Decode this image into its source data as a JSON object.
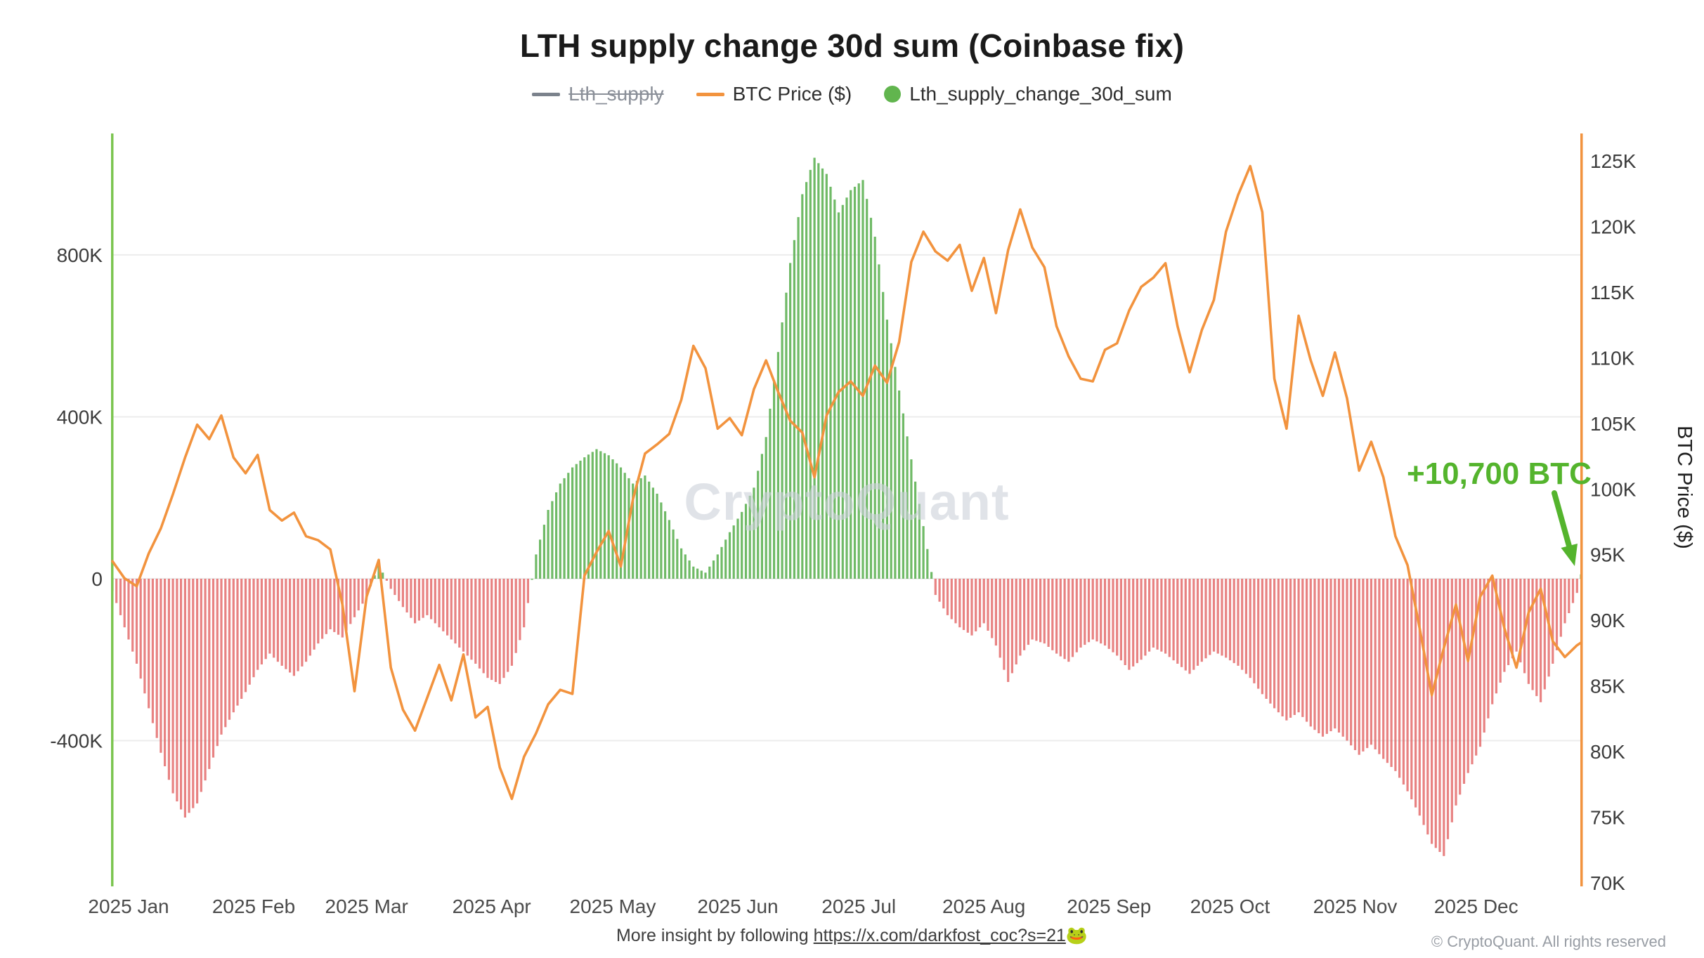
{
  "title": "LTH supply change 30d sum (Coinbase fix)",
  "watermark": "CryptoQuant",
  "legend": [
    {
      "label": "Lth_supply",
      "type": "line",
      "color": "#7b828c",
      "disabled": true
    },
    {
      "label": "BTC Price ($)",
      "type": "line",
      "color": "#f2933e",
      "disabled": false
    },
    {
      "label": "Lth_supply_change_30d_sum",
      "type": "dot",
      "color": "#61b54e",
      "disabled": false
    }
  ],
  "footer": {
    "insight_prefix": "More insight by following ",
    "insight_link": "https://x.com/darkfost_coc?s=21",
    "insight_emoji": "🐸",
    "copyright": "© CryptoQuant. All rights reserved"
  },
  "colors": {
    "bar_positive": "#5fb355",
    "bar_negative": "#e25f5f",
    "price_line": "#f2933e",
    "left_axis_line": "#7cc550",
    "right_axis_line": "#f2933e",
    "annotation_green": "#54b42d",
    "watermark": "#ccd1d9",
    "gridline": "#ececec"
  },
  "chart_data": {
    "type": "bar+line (dual axis)",
    "title": "LTH supply change 30d sum (Coinbase fix)",
    "x_unit": "day of year 2025 (daily bars, values sampled ~every 3 days)",
    "x_tick_labels": [
      "2025 Jan",
      "2025 Feb",
      "2025 Mar",
      "2025 Apr",
      "2025 May",
      "2025 Jun",
      "2025 Jul",
      "2025 Aug",
      "2025 Sep",
      "2025 Oct",
      "2025 Nov",
      "2025 Dec"
    ],
    "x_tick_days": [
      0,
      31,
      59,
      90,
      120,
      151,
      181,
      212,
      243,
      273,
      304,
      334
    ],
    "x_days": [
      0,
      3,
      6,
      9,
      12,
      15,
      18,
      21,
      24,
      27,
      30,
      33,
      36,
      39,
      42,
      45,
      48,
      51,
      54,
      57,
      60,
      63,
      66,
      69,
      72,
      75,
      78,
      81,
      84,
      87,
      90,
      93,
      96,
      99,
      102,
      105,
      108,
      111,
      114,
      117,
      120,
      123,
      126,
      129,
      132,
      135,
      138,
      141,
      144,
      147,
      150,
      153,
      156,
      159,
      162,
      165,
      168,
      171,
      174,
      177,
      180,
      183,
      186,
      189,
      192,
      195,
      198,
      201,
      204,
      207,
      210,
      213,
      216,
      219,
      222,
      225,
      228,
      231,
      234,
      237,
      240,
      243,
      246,
      249,
      252,
      255,
      258,
      261,
      264,
      267,
      270,
      273,
      276,
      279,
      282,
      285,
      288,
      291,
      294,
      297,
      300,
      303,
      306,
      309,
      312,
      315,
      318,
      321,
      324,
      327,
      330,
      333,
      336,
      339,
      342,
      345,
      348,
      351,
      354,
      357,
      360,
      363,
      364
    ],
    "left_axis": {
      "series": "Lth_supply_change_30d_sum",
      "unit": "BTC (K = thousands)",
      "ticks": [
        {
          "label": "800K",
          "value_k": 800
        },
        {
          "label": "400K",
          "value_k": 400
        },
        {
          "label": "0",
          "value_k": 0
        },
        {
          "label": "-400K",
          "value_k": -400
        }
      ],
      "range_k": [
        -760,
        1100
      ],
      "grid": true
    },
    "right_axis": {
      "label": "BTC Price ($)",
      "unit": "USD (K = thousands)",
      "ticks": [
        "125K",
        "120K",
        "115K",
        "110K",
        "105K",
        "100K",
        "95K",
        "90K",
        "85K",
        "80K",
        "75K",
        "70K"
      ],
      "tick_values_k": [
        125,
        120,
        115,
        110,
        105,
        100,
        95,
        90,
        85,
        80,
        75,
        70
      ]
    },
    "series": [
      {
        "name": "Lth_supply_change_30d_sum",
        "type": "bar",
        "axis": "left",
        "unit": "K BTC",
        "positive_color": "#5fb355",
        "negative_color": "#e25f5f",
        "values_k": [
          -30,
          -120,
          -210,
          -320,
          -430,
          -530,
          -590,
          -555,
          -470,
          -385,
          -330,
          -280,
          -225,
          -185,
          -215,
          -240,
          -205,
          -160,
          -125,
          -145,
          -95,
          -45,
          35,
          -25,
          -70,
          -110,
          -90,
          -120,
          -150,
          -180,
          -210,
          -245,
          -260,
          -215,
          -120,
          60,
          170,
          235,
          275,
          300,
          320,
          305,
          275,
          235,
          255,
          210,
          145,
          75,
          30,
          15,
          60,
          115,
          165,
          225,
          350,
          560,
          780,
          950,
          1040,
          1000,
          905,
          960,
          985,
          845,
          640,
          465,
          295,
          130,
          -40,
          -90,
          -120,
          -140,
          -110,
          -165,
          -255,
          -190,
          -150,
          -160,
          -185,
          -205,
          -170,
          -150,
          -165,
          -190,
          -225,
          -200,
          -170,
          -185,
          -210,
          -235,
          -205,
          -180,
          -195,
          -215,
          -245,
          -285,
          -320,
          -350,
          -330,
          -365,
          -390,
          -370,
          -400,
          -435,
          -410,
          -445,
          -475,
          -525,
          -585,
          -655,
          -685,
          -560,
          -480,
          -415,
          -310,
          -230,
          -180,
          -260,
          -305,
          -210,
          -110,
          -35,
          10.7
        ]
      },
      {
        "name": "BTC Price ($)",
        "type": "line",
        "axis": "right",
        "unit": "K USD",
        "color": "#f2933e",
        "values_k": [
          94.5,
          93.2,
          92.6,
          95.1,
          97.0,
          99.6,
          102.4,
          104.9,
          103.8,
          105.6,
          102.4,
          101.2,
          102.6,
          98.4,
          97.6,
          98.2,
          96.4,
          96.1,
          95.4,
          91.2,
          84.6,
          91.8,
          94.6,
          86.4,
          83.2,
          81.6,
          84.1,
          86.6,
          83.9,
          87.4,
          82.6,
          83.4,
          78.8,
          76.4,
          79.6,
          81.4,
          83.6,
          84.7,
          84.4,
          93.4,
          95.2,
          96.8,
          94.1,
          99.2,
          102.7,
          103.4,
          104.2,
          106.8,
          110.9,
          109.2,
          104.6,
          105.4,
          104.1,
          107.6,
          109.8,
          107.4,
          105.2,
          104.3,
          100.9,
          105.6,
          107.4,
          108.2,
          107.1,
          109.4,
          108.1,
          111.2,
          117.3,
          119.6,
          118.1,
          117.4,
          118.6,
          115.1,
          117.6,
          113.4,
          118.2,
          121.3,
          118.4,
          116.9,
          112.4,
          110.1,
          108.4,
          108.2,
          110.6,
          111.1,
          113.6,
          115.4,
          116.1,
          117.2,
          112.4,
          108.9,
          112.1,
          114.4,
          119.6,
          122.4,
          124.6,
          121.1,
          108.4,
          104.6,
          113.2,
          109.8,
          107.1,
          110.4,
          106.9,
          101.4,
          103.6,
          100.9,
          96.4,
          94.2,
          89.4,
          84.3,
          87.9,
          91.2,
          86.9,
          91.8,
          93.4,
          89.4,
          86.4,
          90.6,
          92.4,
          88.4,
          87.2,
          88.1,
          88.3
        ]
      }
    ],
    "disabled_series": "Lth_supply",
    "annotation": {
      "text": "+10,700 BTC",
      "value_btc": 10700,
      "color": "#54b42d"
    },
    "legend_position": "top-center"
  }
}
